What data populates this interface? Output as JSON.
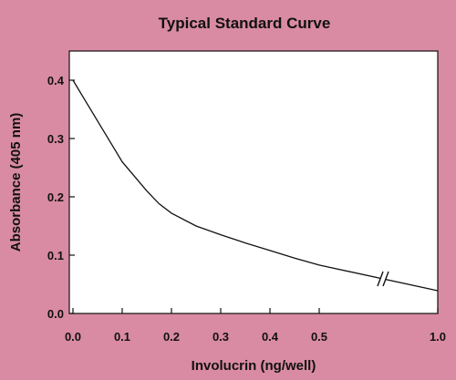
{
  "chart_data": {
    "type": "line",
    "title": "Typical Standard Curve",
    "xlabel": "Involucrin (ng/well)",
    "ylabel": "Absorbance (405 nm)",
    "x_ticks": [
      "0.0",
      "0.1",
      "0.2",
      "0.3",
      "0.4",
      "0.5",
      "1.0"
    ],
    "y_ticks": [
      "0.0",
      "0.1",
      "0.2",
      "0.3",
      "0.4"
    ],
    "ylim": [
      0,
      0.45
    ],
    "axis_break": {
      "between": [
        0.5,
        1.0
      ]
    },
    "grid": false,
    "series": [
      {
        "x": [
          0.0,
          0.025,
          0.05,
          0.075,
          0.1,
          0.125,
          0.15,
          0.175,
          0.2,
          0.25,
          0.3,
          0.35,
          0.4,
          0.45,
          0.5,
          1.0
        ],
        "y": [
          0.4,
          0.365,
          0.33,
          0.295,
          0.26,
          0.235,
          0.21,
          0.188,
          0.172,
          0.15,
          0.135,
          0.121,
          0.108,
          0.095,
          0.083,
          0.039
        ]
      }
    ],
    "colors": {
      "background": "#d98ba3",
      "plot_area": "#ffffff",
      "line": "#111111"
    }
  }
}
